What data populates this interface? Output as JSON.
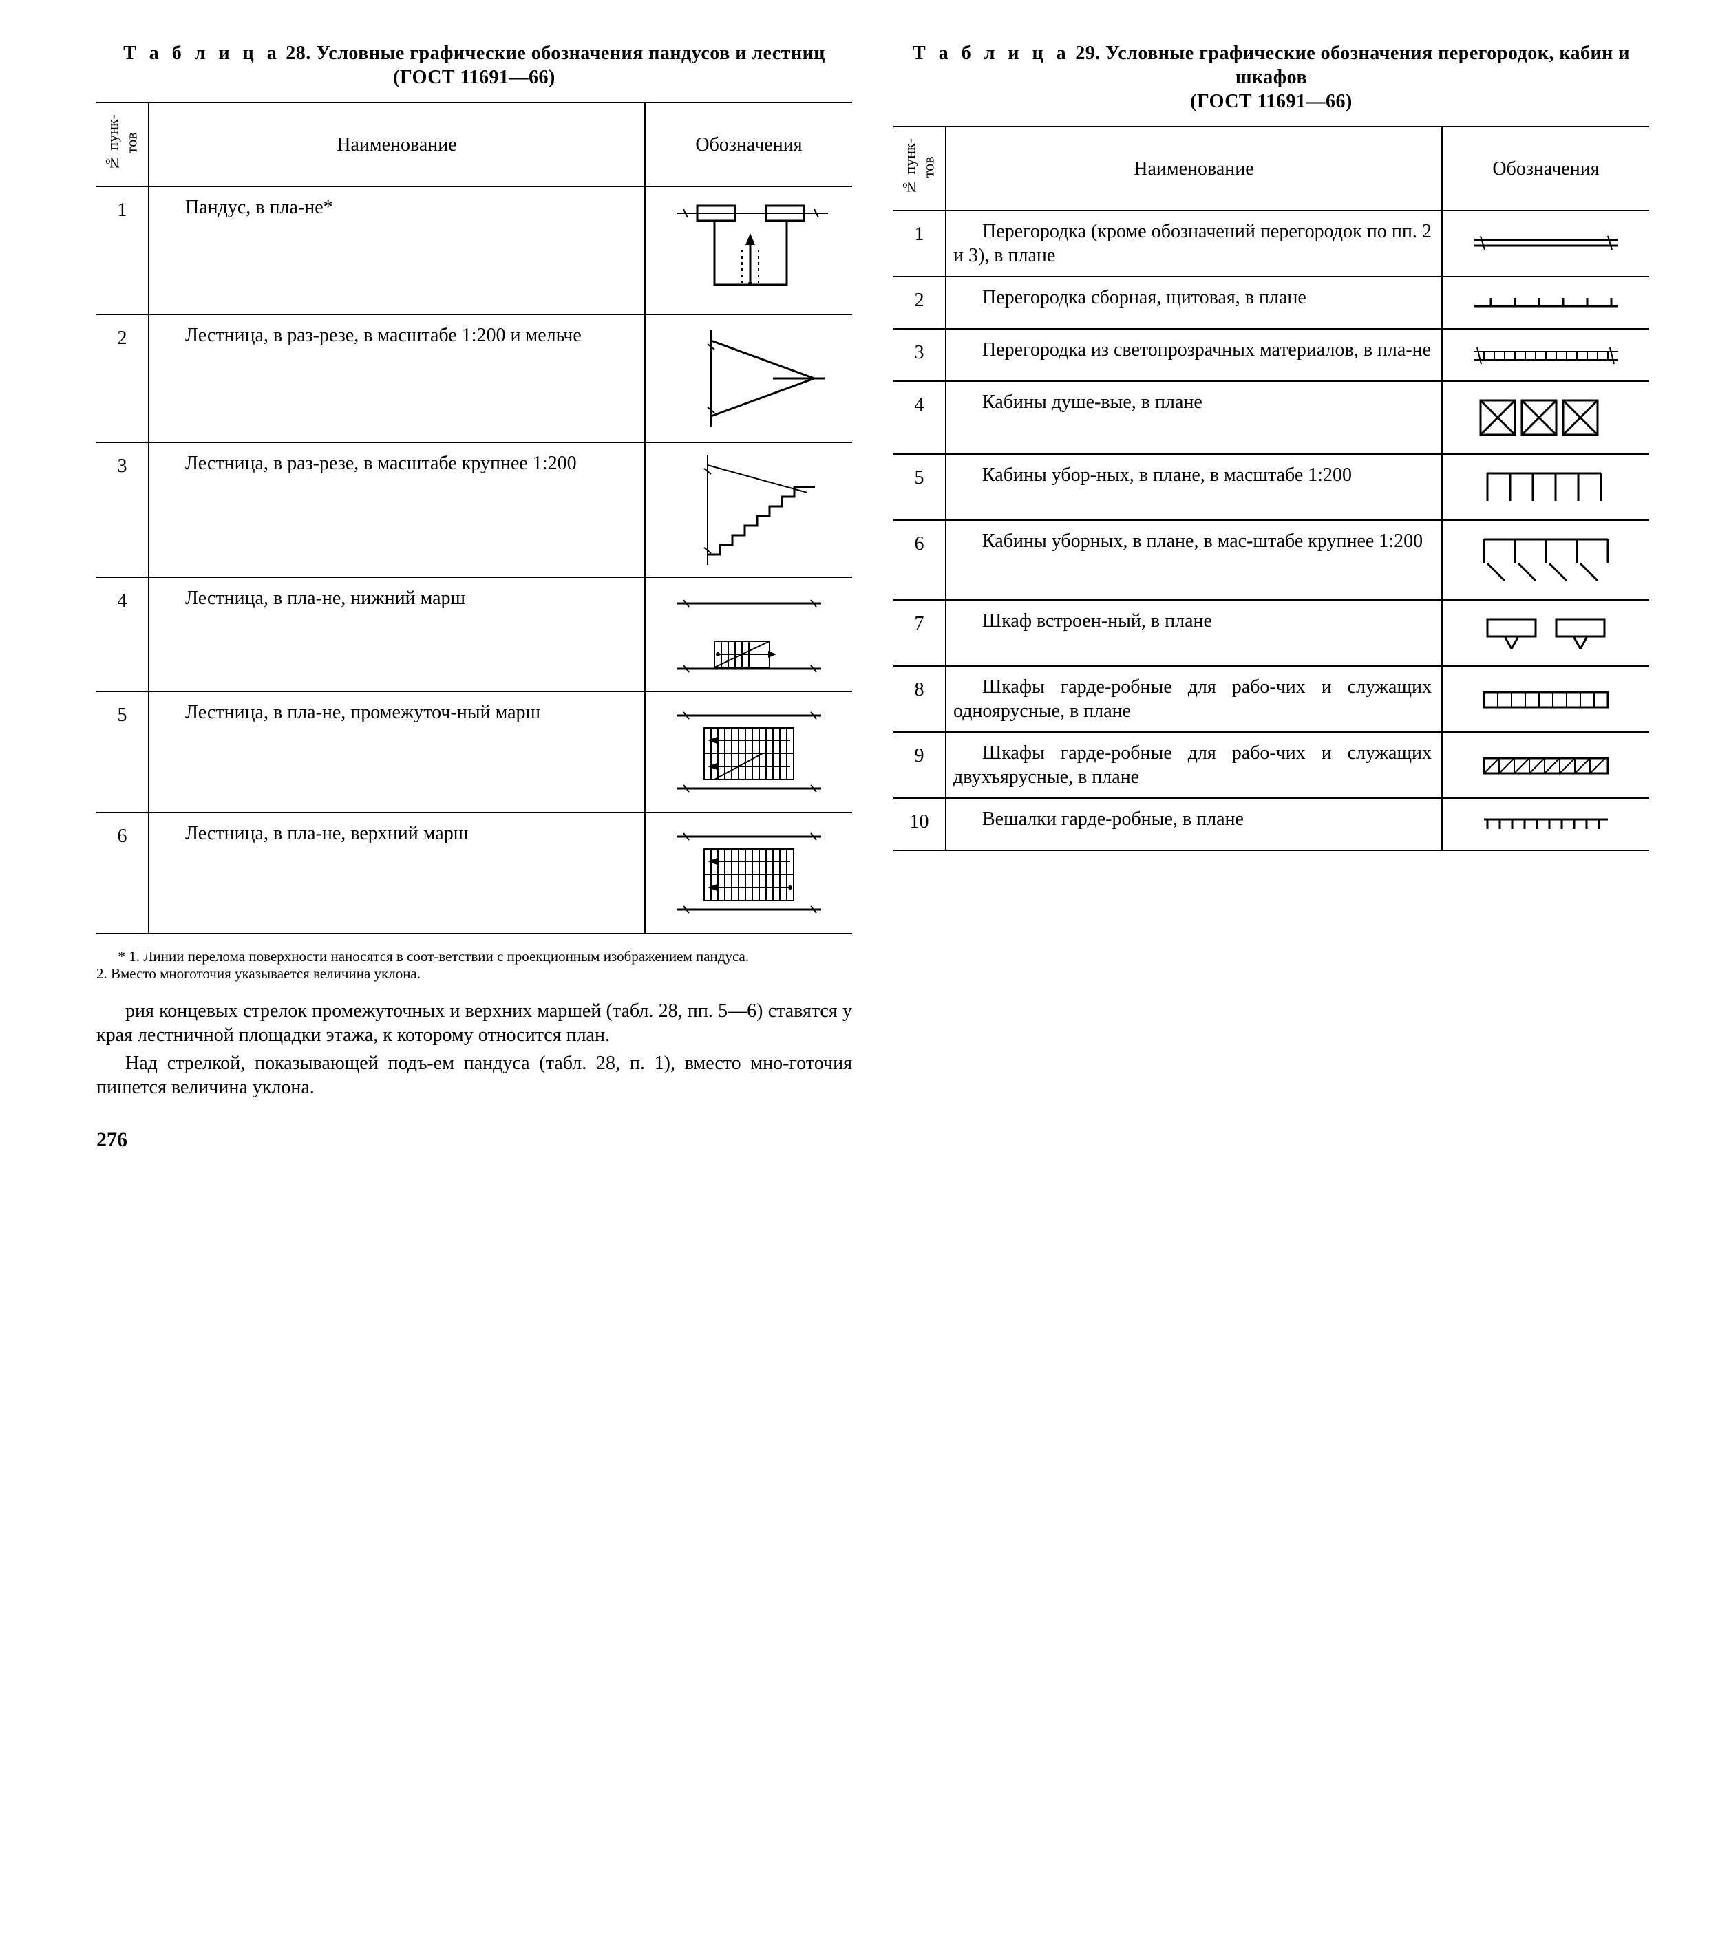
{
  "page_number": "276",
  "table28": {
    "caption_label": "Т а б л и ц а",
    "caption_num": "28.",
    "caption_title": "Условные графические обозначения пандусов и лестниц",
    "caption_gost": "(ГОСТ 11691—66)",
    "head_num": "№ пунк-\nтов",
    "head_name": "Наименование",
    "head_sym": "Обозначения",
    "rows": [
      {
        "n": "1",
        "name": "Пандус, в пла-не*"
      },
      {
        "n": "2",
        "name": "Лестница, в раз-резе, в масштабе 1:200 и мельче"
      },
      {
        "n": "3",
        "name": "Лестница, в раз-резе, в масштабе крупнее 1:200"
      },
      {
        "n": "4",
        "name": "Лестница, в пла-не, нижний марш"
      },
      {
        "n": "5",
        "name": "Лестница, в пла-не, промежуточ-ный марш"
      },
      {
        "n": "6",
        "name": "Лестница, в пла-не, верхний марш"
      }
    ],
    "footnote": "* 1. Линии перелома поверхности наносятся в соот-ветствии с проекционным изображением пандуса.\n2. Вместо многоточия указывается величина уклона."
  },
  "bodytext": {
    "p1": "рия концевых стрелок промежуточных и верхних маршей (табл. 28, пп. 5—6) ставятся у края лестничной площадки этажа, к которому относится план.",
    "p2": "Над стрелкой, показывающей подъ-ем пандуса (табл. 28, п. 1), вместо мно-готочия пишется величина уклона."
  },
  "table29": {
    "caption_label": "Т а б л и ц а",
    "caption_num": "29.",
    "caption_title": "Условные графические обозначения перегородок, кабин и шкафов",
    "caption_gost": "(ГОСТ 11691—66)",
    "head_num": "№ пунк-\nтов",
    "head_name": "Наименование",
    "head_sym": "Обозначения",
    "rows": [
      {
        "n": "1",
        "name": "Перегородка (кроме обозначений перегородок по пп. 2 и 3), в плане"
      },
      {
        "n": "2",
        "name": "Перегородка сборная, щитовая, в плане"
      },
      {
        "n": "3",
        "name": "Перегородка из светопрозрачных материалов, в пла-не"
      },
      {
        "n": "4",
        "name": "Кабины душе-вые, в плане"
      },
      {
        "n": "5",
        "name": "Кабины убор-ных, в плане, в масштабе 1:200"
      },
      {
        "n": "6",
        "name": "Кабины уборных, в плане, в мас-штабе крупнее 1:200"
      },
      {
        "n": "7",
        "name": "Шкаф встроен-ный, в плане"
      },
      {
        "n": "8",
        "name": "Шкафы гарде-робные для рабо-чих и служащих одноярусные, в плане"
      },
      {
        "n": "9",
        "name": "Шкафы гарде-робные для рабо-чих и служащих двухъярусные, в плане"
      },
      {
        "n": "10",
        "name": "Вешалки гарде-робные, в плане"
      }
    ]
  },
  "colors": {
    "stroke": "#000000",
    "thin": "#000000"
  }
}
